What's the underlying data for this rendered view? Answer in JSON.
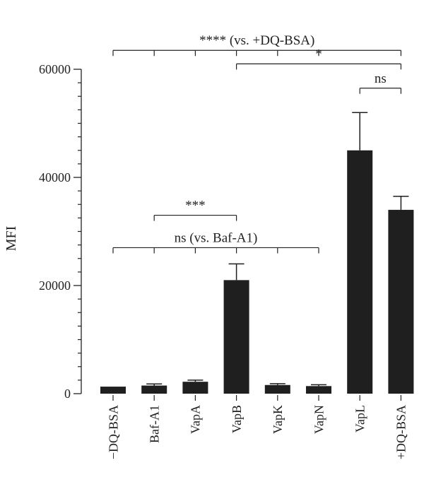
{
  "chart_data": {
    "type": "bar",
    "title": "",
    "xlabel": "",
    "ylabel": "MFI",
    "ylim": [
      0,
      60000
    ],
    "y_ticks": [
      0,
      20000,
      40000,
      60000
    ],
    "y_tick_labels": [
      "0",
      "20000",
      "40000",
      "60000"
    ],
    "y_minor_step": 2500,
    "grid": false,
    "legend": "none",
    "bar_color": "#1f1f1f",
    "categories": [
      "−DQ-BSA",
      "Baf-A1",
      "VapA",
      "VapB",
      "VapK",
      "VapN",
      "VapL",
      "+DQ-BSA"
    ],
    "series": [
      {
        "values": [
          1300,
          1500,
          2200,
          21000,
          1600,
          1400,
          45000,
          34000
        ],
        "errors": [
          0,
          300,
          300,
          3000,
          250,
          250,
          7000,
          2500
        ]
      }
    ],
    "annotations": [
      {
        "label": "**** (vs. +DQ-BSA)",
        "from": 0,
        "to": 7,
        "ticks": [
          0,
          1,
          2,
          3,
          4,
          5,
          7
        ],
        "level": 63500
      },
      {
        "label": "*",
        "from": 3,
        "to": 7,
        "ticks": [
          3,
          7
        ],
        "level": 61000
      },
      {
        "label": "ns",
        "from": 6,
        "to": 7,
        "ticks": [
          6,
          7
        ],
        "level": 56500
      },
      {
        "label": "***",
        "from": 1,
        "to": 3,
        "ticks": [
          1,
          3
        ],
        "level": 33000
      },
      {
        "label": "ns (vs. Baf-A1)",
        "from": 0,
        "to": 5,
        "ticks": [
          0,
          1,
          2,
          3,
          4,
          5
        ],
        "level": 27000
      }
    ]
  }
}
